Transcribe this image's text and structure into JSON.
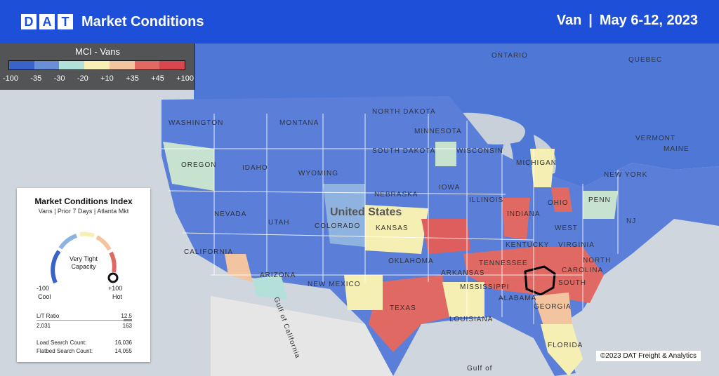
{
  "header": {
    "logo_letters": [
      "D",
      "A",
      "T"
    ],
    "title": "Market Conditions",
    "mode": "Van",
    "separator": "|",
    "date_range": "May 6-12, 2023"
  },
  "legend": {
    "title": "MCI - Vans",
    "ticks": [
      "-100",
      "-35",
      "-30",
      "-20",
      "+10",
      "+35",
      "+45",
      "+100"
    ],
    "colors": [
      "#3a63c9",
      "#6b8fd6",
      "#b3e0d9",
      "#f7efb4",
      "#f3c4a0",
      "#e06a63",
      "#d84650"
    ]
  },
  "card": {
    "title": "Market Conditions Index",
    "subtitle": "Vans | Prior 7 Days | Atlanta Mkt",
    "gauge_status": "Very Tight Capacity",
    "gauge_value_fraction": 0.92,
    "min_label": "-100",
    "max_label": "+100",
    "cool_label": "Cool",
    "hot_label": "Hot",
    "lt_ratio_label": "L/T Ratio",
    "lt_ratio_value": "12.5",
    "loads_value": "2,031",
    "trucks_value": "163",
    "load_search_label": "Load Search Count:",
    "load_search_value": "16,036",
    "flatbed_search_label": "Flatbed Search Count:",
    "flatbed_search_value": "14,055"
  },
  "map": {
    "labels": [
      "ONTARIO",
      "QUEBEC",
      "WASHINGTON",
      "MONTANA",
      "NORTH DAKOTA",
      "MINNESOTA",
      "OREGON",
      "IDAHO",
      "WYOMING",
      "SOUTH DAKOTA",
      "WISCONSIN",
      "MICHIGAN",
      "NEW YORK",
      "MAINE",
      "VERMONT",
      "IOWA",
      "NEBRASKA",
      "NEVADA",
      "UTAH",
      "COLORADO",
      "KANSAS",
      "ILLINOIS",
      "INDIANA",
      "OHIO",
      "PENN",
      "NJ",
      "CALIFORNIA",
      "ARIZONA",
      "NEW MEXICO",
      "OKLAHOMA",
      "ARKANSAS",
      "TENNESSEE",
      "KENTUCKY",
      "VIRGINIA",
      "WEST",
      "NORTH",
      "CAROLINA",
      "SOUTH",
      "MISSISSIPPI",
      "ALABAMA",
      "GEORGIA",
      "TEXAS",
      "LOUISIANA",
      "FLORIDA",
      "Gulf of California",
      "Gulf of"
    ],
    "country_label": "United States"
  },
  "copyright": "©2023 DAT Freight & Analytics"
}
